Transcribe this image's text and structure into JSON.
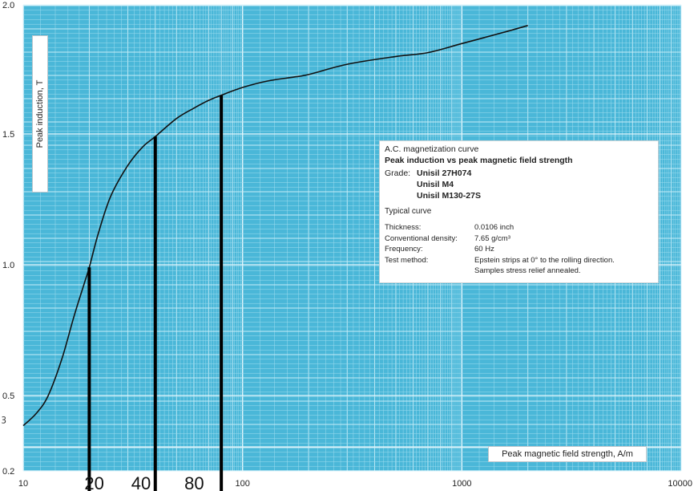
{
  "chart_data": {
    "type": "line",
    "xscale": "log",
    "yscale": "nonlinear",
    "xlim": [
      10,
      10000
    ],
    "ylim": [
      0.2,
      2.0
    ],
    "y_ticks": [
      0.2,
      0.5,
      1.0,
      1.5,
      2.0
    ],
    "y_tick_labels": [
      "0.2",
      "0.5",
      "1.0",
      "1.5",
      "2.0"
    ],
    "x_ticks": [
      10,
      100,
      1000,
      10000
    ],
    "x_tick_labels": [
      "10",
      "100",
      "1000",
      "10000"
    ],
    "ylabel": "Peak induction, T",
    "xlabel": "Peak magnetic field strength, A/m",
    "grid": true,
    "series": [
      {
        "x": [
          10,
          11.5,
          13,
          15,
          17,
          19,
          20,
          22,
          25,
          30,
          35,
          40,
          50,
          60,
          70,
          80,
          100,
          130,
          170,
          200,
          300,
          500,
          700,
          1000,
          1500,
          2000
        ],
        "y": [
          0.38,
          0.43,
          0.5,
          0.64,
          0.8,
          0.93,
          0.99,
          1.12,
          1.26,
          1.38,
          1.45,
          1.49,
          1.56,
          1.6,
          1.63,
          1.65,
          1.68,
          1.705,
          1.72,
          1.73,
          1.77,
          1.8,
          1.815,
          1.85,
          1.89,
          1.92
        ]
      }
    ],
    "markers": [
      {
        "label": "20",
        "x": 20,
        "y": 0.99
      },
      {
        "label": "40",
        "x": 40,
        "y": 1.49
      },
      {
        "label": "80",
        "x": 80,
        "y": 1.65
      }
    ],
    "legend": {
      "title": "A.C. magnetization curve",
      "subtitle": "Peak induction vs peak magnetic field strength",
      "grade_label": "Grade:",
      "grades": [
        "Unisil 27H074",
        "Unisil M4",
        "Unisil M130-27S"
      ],
      "typical": "Typical curve",
      "props": [
        {
          "k": "Thickness:",
          "v": "0.0106 inch"
        },
        {
          "k": "Conventional density:",
          "v": "7.65 g/cm³"
        },
        {
          "k": "Frequency:",
          "v": "60 Hz"
        },
        {
          "k": "Test method:",
          "v": "Epstein strips at 0° to the rolling direction."
        },
        {
          "k": "",
          "v": "Samples stress relief annealed."
        }
      ]
    },
    "stray_label": "ꝫ",
    "colors": {
      "background": "#4ab7d8",
      "grid_minor": "#9ddcef",
      "grid_major": "#e3f6fc",
      "curve": "#111111",
      "marker_line": "#000000"
    }
  }
}
